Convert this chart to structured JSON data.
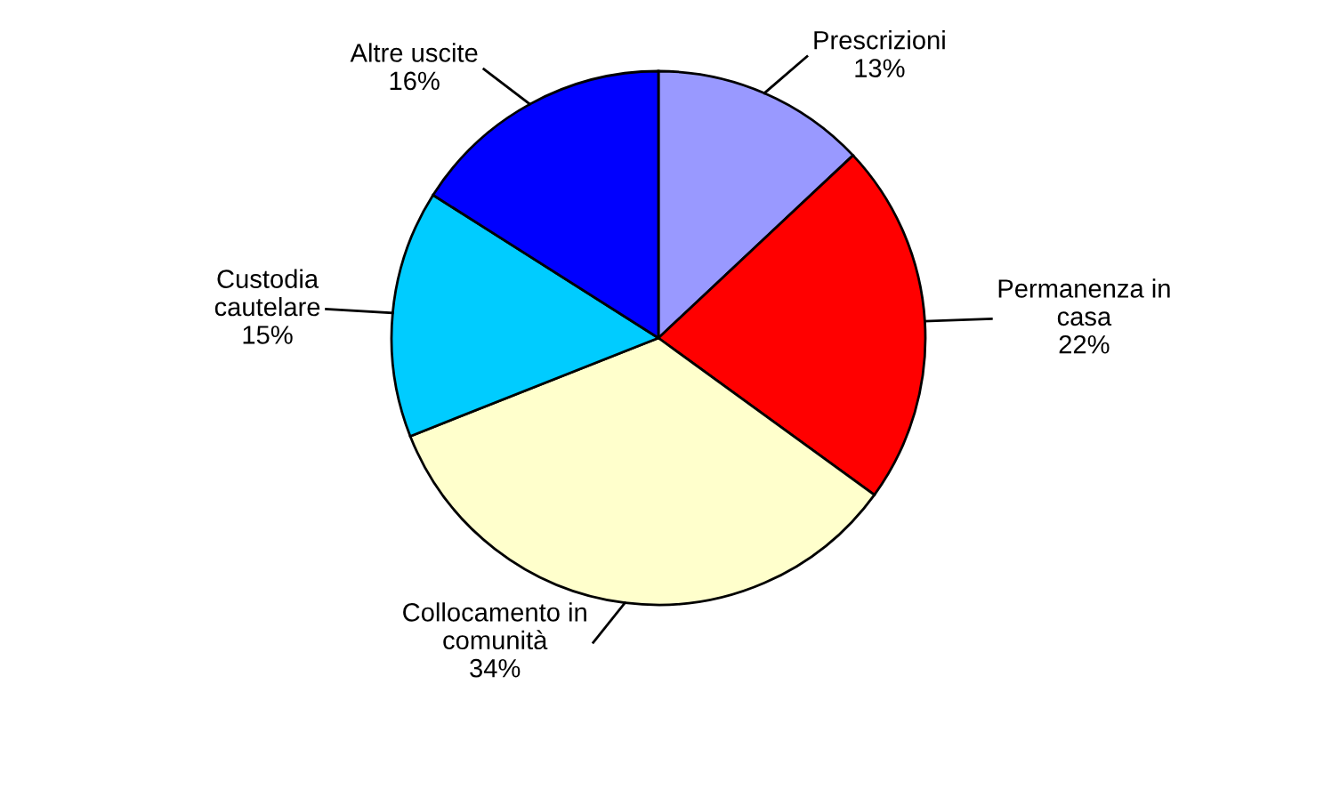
{
  "chart_data": {
    "type": "pie",
    "categories": [
      "Prescrizioni",
      "Permanenza in\ncasa",
      "Collocamento in\ncomunità",
      "Custodia\ncautelare",
      "Altre uscite"
    ],
    "values": [
      13,
      22,
      34,
      15,
      16
    ],
    "value_labels": [
      "13%",
      "22%",
      "34%",
      "15%",
      "16%"
    ],
    "colors": [
      "#9999ff",
      "#ff0000",
      "#ffffcc",
      "#00ccff",
      "#0000ff"
    ]
  }
}
